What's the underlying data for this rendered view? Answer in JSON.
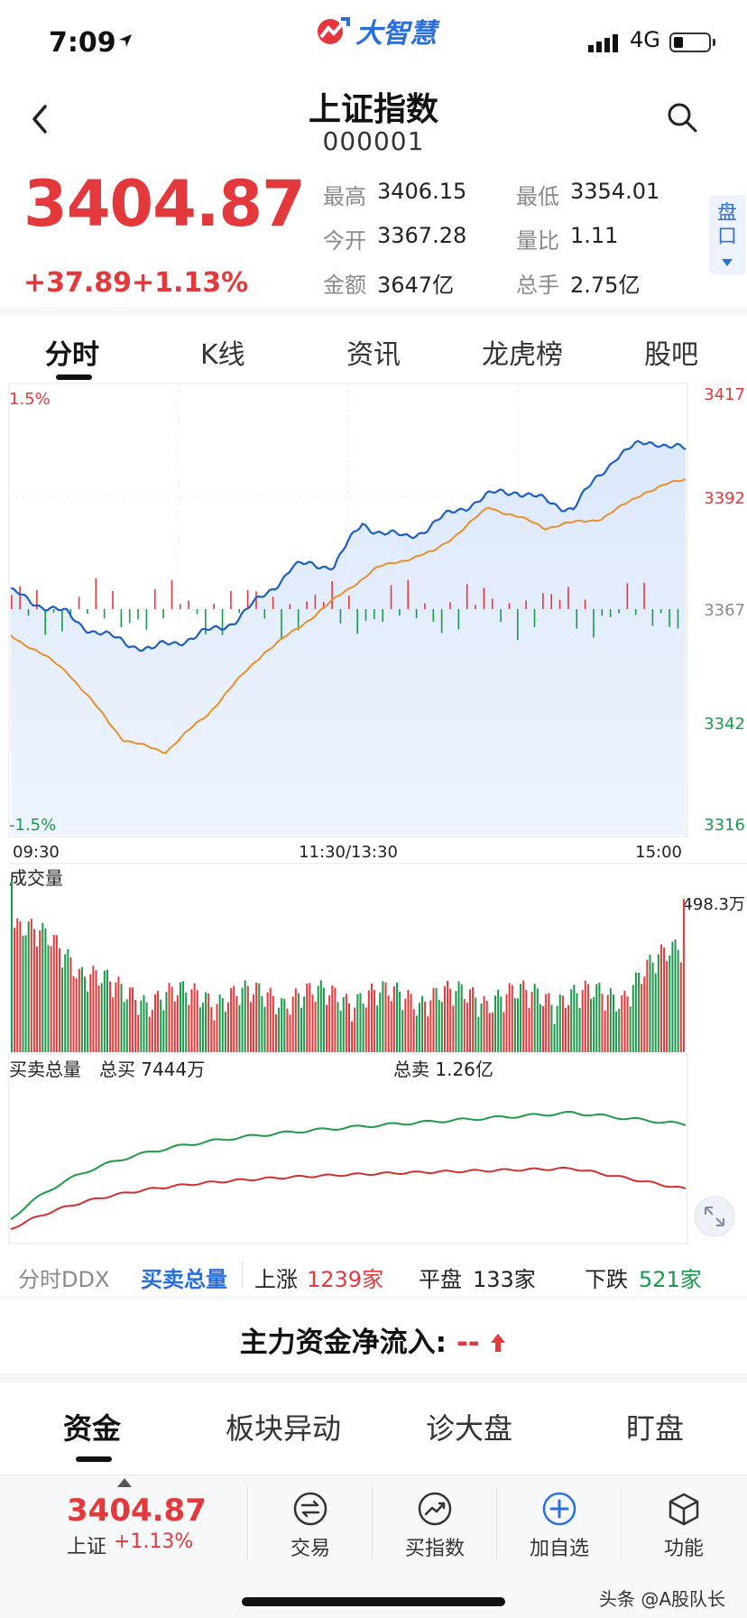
{
  "status": {
    "time": "7:09",
    "network": "4G",
    "brand": "大智慧"
  },
  "header": {
    "title": "上证指数",
    "code": "000001"
  },
  "quote": {
    "price": "3404.87",
    "change_abs": "+37.89",
    "change_pct": "+1.13%",
    "stats": [
      {
        "label": "最高",
        "value": "3406.15"
      },
      {
        "label": "最低",
        "value": "3354.01"
      },
      {
        "label": "今开",
        "value": "3367.28"
      },
      {
        "label": "量比",
        "value": "1.11"
      },
      {
        "label": "金额",
        "value": "3647亿"
      },
      {
        "label": "总手",
        "value": "2.75亿"
      }
    ],
    "pankou_label": "盘口"
  },
  "tabs": [
    "分时",
    "K线",
    "资讯",
    "龙虎榜",
    "股吧"
  ],
  "chart": {
    "pct_top": "1.5%",
    "pct_bottom": "-1.5%",
    "price_ticks": [
      "3417",
      "3392",
      "3367",
      "3342",
      "3316"
    ],
    "time_ticks": [
      "09:30",
      "11:30/13:30",
      "15:00"
    ],
    "volume_title": "成交量",
    "volume_max_label": "498.3万",
    "buysell_title": "买卖总量",
    "total_buy": "总买 7444万",
    "total_sell": "总卖 1.26亿",
    "colors": {
      "index_line": "#1f5fbf",
      "avg_line": "#e8902a",
      "up": "#e4393c",
      "down": "#1a9a4b",
      "buy_line": "#1f9a45",
      "sell_line": "#d0312d"
    }
  },
  "chart_data": {
    "type": "line",
    "title": "",
    "x": [
      "09:30",
      "11:30/13:30",
      "15:00"
    ],
    "ylim": [
      3316,
      3417
    ],
    "series": [],
    "volume_max": "498.3万"
  },
  "breadth": {
    "tab_ddx": "分时DDX",
    "tab_total": "买卖总量",
    "up_label": "上涨",
    "up_count": "1239家",
    "flat_label": "平盘",
    "flat_count": "133家",
    "down_label": "下跌",
    "down_count": "521家"
  },
  "inflow": {
    "label": "主力资金净流入:",
    "value": "--"
  },
  "bottom_tabs": [
    "资金",
    "板块异动",
    "诊大盘",
    "盯盘"
  ],
  "bottom_nav": {
    "mini_price": "3404.87",
    "mini_name": "上证",
    "mini_pct": "+1.13%",
    "items": [
      "交易",
      "买指数",
      "加自选",
      "功能"
    ]
  },
  "watermark": "头条 @A股队长"
}
